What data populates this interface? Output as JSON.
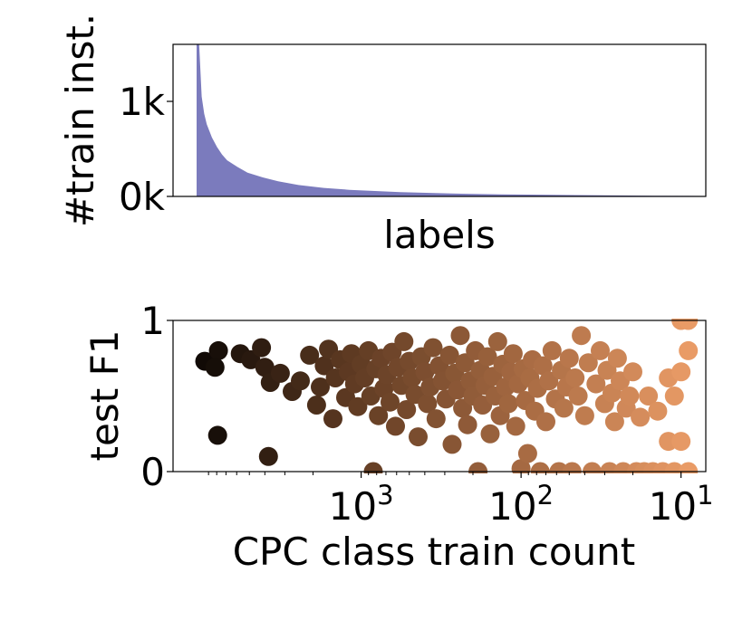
{
  "chart_data": [
    {
      "type": "area",
      "xlabel": "labels",
      "ylabel": "#train inst.",
      "ylim": [
        0,
        1600
      ],
      "yticks": [
        {
          "value": 0,
          "label": "0k"
        },
        {
          "value": 1000,
          "label": "1k"
        }
      ],
      "fill_color": "#7b7bbd",
      "grid": false,
      "series": [
        {
          "x_fraction": [
            0,
            0.005,
            0.01,
            0.015,
            0.02,
            0.03,
            0.04,
            0.05,
            0.06,
            0.08,
            0.1,
            0.13,
            0.16,
            0.2,
            0.25,
            0.3,
            0.4,
            0.5,
            0.6,
            0.7,
            0.8,
            0.9,
            1.0
          ],
          "values": [
            1600,
            1600,
            1050,
            870,
            760,
            620,
            520,
            440,
            380,
            310,
            250,
            200,
            160,
            120,
            90,
            70,
            45,
            30,
            22,
            16,
            12,
            8,
            5
          ]
        }
      ]
    },
    {
      "type": "scatter",
      "xlabel": "CPC class train count",
      "ylabel": "test F1",
      "x_scale": "log",
      "x_reversed": true,
      "xlim": [
        15000,
        7
      ],
      "ylim": [
        0,
        1
      ],
      "xticks": [
        {
          "value": 1000,
          "base": "10",
          "exp": "3"
        },
        {
          "value": 100,
          "base": "10",
          "exp": "2"
        },
        {
          "value": 10,
          "base": "10",
          "exp": "1"
        }
      ],
      "yticks": [
        {
          "value": 0,
          "label": "0"
        },
        {
          "value": 1,
          "label": "1"
        }
      ],
      "color_scale": [
        "#000000",
        "#5e3a22",
        "#a86b43",
        "#f0a06a"
      ],
      "grid": false,
      "points": [
        {
          "x": 9500,
          "y": 0.73
        },
        {
          "x": 7800,
          "y": 0.8
        },
        {
          "x": 8200,
          "y": 0.69
        },
        {
          "x": 7900,
          "y": 0.24
        },
        {
          "x": 5700,
          "y": 0.78
        },
        {
          "x": 4900,
          "y": 0.74
        },
        {
          "x": 4200,
          "y": 0.82
        },
        {
          "x": 4000,
          "y": 0.69
        },
        {
          "x": 3700,
          "y": 0.59
        },
        {
          "x": 3800,
          "y": 0.1
        },
        {
          "x": 3200,
          "y": 0.65
        },
        {
          "x": 2700,
          "y": 0.53
        },
        {
          "x": 2400,
          "y": 0.6
        },
        {
          "x": 2100,
          "y": 0.77
        },
        {
          "x": 1900,
          "y": 0.44
        },
        {
          "x": 1800,
          "y": 0.56
        },
        {
          "x": 1700,
          "y": 0.7
        },
        {
          "x": 1600,
          "y": 0.81
        },
        {
          "x": 1500,
          "y": 0.35
        },
        {
          "x": 1450,
          "y": 0.62
        },
        {
          "x": 1350,
          "y": 0.74
        },
        {
          "x": 1250,
          "y": 0.49
        },
        {
          "x": 1200,
          "y": 0.66
        },
        {
          "x": 1150,
          "y": 0.78
        },
        {
          "x": 1100,
          "y": 0.58
        },
        {
          "x": 1050,
          "y": 0.43
        },
        {
          "x": 1000,
          "y": 0.71
        },
        {
          "x": 950,
          "y": 0.62
        },
        {
          "x": 900,
          "y": 0.8
        },
        {
          "x": 870,
          "y": 0.5
        },
        {
          "x": 840,
          "y": 0.0
        },
        {
          "x": 810,
          "y": 0.68
        },
        {
          "x": 780,
          "y": 0.37
        },
        {
          "x": 750,
          "y": 0.75
        },
        {
          "x": 720,
          "y": 0.55
        },
        {
          "x": 690,
          "y": 0.64
        },
        {
          "x": 660,
          "y": 0.46
        },
        {
          "x": 640,
          "y": 0.79
        },
        {
          "x": 610,
          "y": 0.3
        },
        {
          "x": 590,
          "y": 0.69
        },
        {
          "x": 560,
          "y": 0.57
        },
        {
          "x": 540,
          "y": 0.86
        },
        {
          "x": 520,
          "y": 0.41
        },
        {
          "x": 500,
          "y": 0.73
        },
        {
          "x": 480,
          "y": 0.62
        },
        {
          "x": 460,
          "y": 0.51
        },
        {
          "x": 440,
          "y": 0.23
        },
        {
          "x": 420,
          "y": 0.76
        },
        {
          "x": 400,
          "y": 0.66
        },
        {
          "x": 385,
          "y": 0.45
        },
        {
          "x": 370,
          "y": 0.56
        },
        {
          "x": 355,
          "y": 0.82
        },
        {
          "x": 340,
          "y": 0.35
        },
        {
          "x": 325,
          "y": 0.7
        },
        {
          "x": 310,
          "y": 0.6
        },
        {
          "x": 295,
          "y": 0.48
        },
        {
          "x": 280,
          "y": 0.77
        },
        {
          "x": 270,
          "y": 0.18
        },
        {
          "x": 260,
          "y": 0.65
        },
        {
          "x": 250,
          "y": 0.54
        },
        {
          "x": 240,
          "y": 0.9
        },
        {
          "x": 232,
          "y": 0.42
        },
        {
          "x": 224,
          "y": 0.72
        },
        {
          "x": 216,
          "y": 0.31
        },
        {
          "x": 208,
          "y": 0.6
        },
        {
          "x": 200,
          "y": 0.5
        },
        {
          "x": 193,
          "y": 0.8
        },
        {
          "x": 186,
          "y": 0.0
        },
        {
          "x": 180,
          "y": 0.67
        },
        {
          "x": 174,
          "y": 0.44
        },
        {
          "x": 168,
          "y": 0.57
        },
        {
          "x": 162,
          "y": 0.76
        },
        {
          "x": 156,
          "y": 0.25
        },
        {
          "x": 150,
          "y": 0.63
        },
        {
          "x": 145,
          "y": 0.5
        },
        {
          "x": 140,
          "y": 0.86
        },
        {
          "x": 135,
          "y": 0.37
        },
        {
          "x": 130,
          "y": 0.71
        },
        {
          "x": 125,
          "y": 0.56
        },
        {
          "x": 120,
          "y": 0.45
        },
        {
          "x": 116,
          "y": 0.66
        },
        {
          "x": 112,
          "y": 0.78
        },
        {
          "x": 108,
          "y": 0.3
        },
        {
          "x": 104,
          "y": 0.58
        },
        {
          "x": 100,
          "y": 0.02
        },
        {
          "x": 97,
          "y": 0.68
        },
        {
          "x": 94,
          "y": 0.47
        },
        {
          "x": 91,
          "y": 0.12
        },
        {
          "x": 88,
          "y": 0.62
        },
        {
          "x": 85,
          "y": 0.74
        },
        {
          "x": 82,
          "y": 0.4
        },
        {
          "x": 79,
          "y": 0.55
        },
        {
          "x": 76,
          "y": 0.0
        },
        {
          "x": 73,
          "y": 0.7
        },
        {
          "x": 70,
          "y": 0.33
        },
        {
          "x": 67,
          "y": 0.6
        },
        {
          "x": 64,
          "y": 0.8
        },
        {
          "x": 61,
          "y": 0.48
        },
        {
          "x": 58,
          "y": 0.0
        },
        {
          "x": 56,
          "y": 0.67
        },
        {
          "x": 54,
          "y": 0.42
        },
        {
          "x": 52,
          "y": 0.56
        },
        {
          "x": 50,
          "y": 0.75
        },
        {
          "x": 48,
          "y": 0.0
        },
        {
          "x": 46,
          "y": 0.62
        },
        {
          "x": 44,
          "y": 0.5
        },
        {
          "x": 42,
          "y": 0.9
        },
        {
          "x": 40,
          "y": 0.37
        },
        {
          "x": 38,
          "y": 0.72
        },
        {
          "x": 36,
          "y": 0.0
        },
        {
          "x": 34,
          "y": 0.58
        },
        {
          "x": 32,
          "y": 0.8
        },
        {
          "x": 30,
          "y": 0.45
        },
        {
          "x": 29,
          "y": 0.67
        },
        {
          "x": 28,
          "y": 0.0
        },
        {
          "x": 27,
          "y": 0.52
        },
        {
          "x": 26,
          "y": 0.33
        },
        {
          "x": 25,
          "y": 0.75
        },
        {
          "x": 24,
          "y": 0.6
        },
        {
          "x": 23,
          "y": 0.0
        },
        {
          "x": 22,
          "y": 0.42
        },
        {
          "x": 21,
          "y": 0.5
        },
        {
          "x": 20,
          "y": 0.66
        },
        {
          "x": 19,
          "y": 0.0
        },
        {
          "x": 18,
          "y": 0.36
        },
        {
          "x": 17,
          "y": 0.0
        },
        {
          "x": 16,
          "y": 0.5
        },
        {
          "x": 15,
          "y": 0.0
        },
        {
          "x": 14,
          "y": 0.4
        },
        {
          "x": 13,
          "y": 0.0
        },
        {
          "x": 12,
          "y": 0.62
        },
        {
          "x": 12,
          "y": 0.2
        },
        {
          "x": 11,
          "y": 0.0
        },
        {
          "x": 11,
          "y": 0.5
        },
        {
          "x": 10,
          "y": 1.0
        },
        {
          "x": 10,
          "y": 0.66
        },
        {
          "x": 10,
          "y": 0.2
        },
        {
          "x": 9,
          "y": 0.0
        },
        {
          "x": 9,
          "y": 0.8
        },
        {
          "x": 9,
          "y": 1.0
        }
      ]
    }
  ]
}
